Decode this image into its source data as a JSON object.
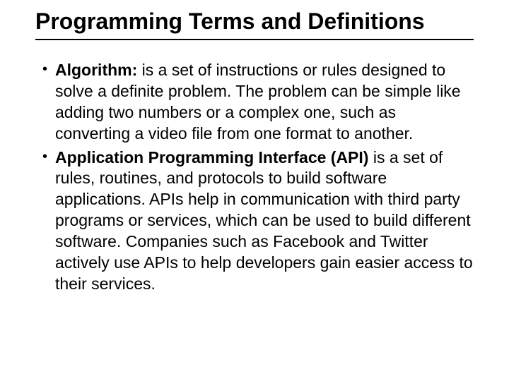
{
  "title": "Programming Terms and Definitions",
  "items": [
    {
      "term": "Algorithm:",
      "definition": " is a set of instructions or rules designed to solve a definite problem. The problem can be simple like adding two numbers or a complex one, such as converting a video file from one format to another."
    },
    {
      "term": "Application Programming Interface (API)",
      "definition": " is a set of rules, routines, and protocols to build software applications. APIs help in communication with third party programs or services, which can be used to build different software. Companies such as Facebook and Twitter actively use APIs to help developers gain easier access to their services."
    }
  ],
  "colors": {
    "background": "#ffffff",
    "text": "#000000",
    "titleUnderline": "#000000"
  },
  "typography": {
    "titleFontSize": 32,
    "bodyFontSize": 23,
    "fontFamily": "Arial"
  }
}
